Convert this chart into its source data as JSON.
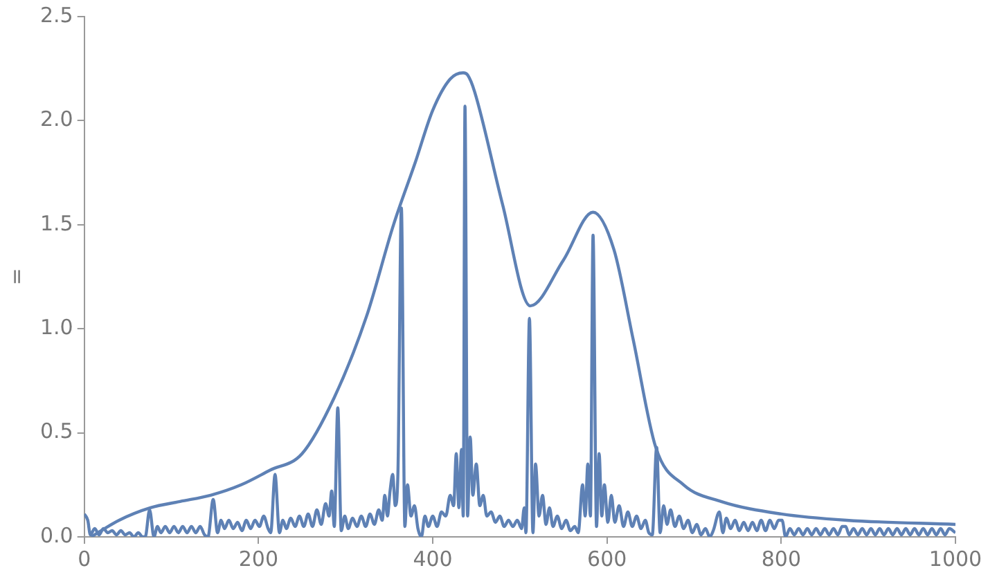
{
  "chart_data": {
    "type": "line",
    "ylabel": "=",
    "xlim": [
      0,
      1000
    ],
    "ylim": [
      0,
      2.5
    ],
    "xticks": [
      0,
      200,
      400,
      600,
      800,
      1000
    ],
    "yticks": [
      {
        "value": 0,
        "label": "0.0"
      },
      {
        "value": 0.5,
        "label": "0.5"
      },
      {
        "value": 1,
        "label": "1.0"
      },
      {
        "value": 1.5,
        "label": "1.5"
      },
      {
        "value": 2,
        "label": "2.0"
      },
      {
        "value": 2.5,
        "label": "2.5"
      }
    ],
    "series": [
      {
        "color": "#5e81b5",
        "x": [
          8,
          40,
          76,
          110,
          145,
          180,
          213,
          250,
          287,
          324,
          355,
          380,
          400,
          420,
          435,
          440,
          448,
          480,
          512,
          550,
          584,
          608,
          630,
          656,
          688,
          731,
          800,
          875,
          1000
        ],
        "values": [
          0,
          0.08,
          0.14,
          0.17,
          0.2,
          0.25,
          0.32,
          0.4,
          0.67,
          1.06,
          1.5,
          1.8,
          2.05,
          2.2,
          2.23,
          2.22,
          2.14,
          1.6,
          1.11,
          1.33,
          1.56,
          1.38,
          0.95,
          0.43,
          0.25,
          0.17,
          0.11,
          0.08,
          0.06
        ]
      },
      {
        "color": "#5e81b5",
        "x": [
          0,
          4,
          7,
          12,
          17,
          22,
          27,
          32,
          37,
          42,
          47,
          52,
          57,
          62,
          67,
          70,
          75,
          80,
          84,
          88,
          93,
          98,
          103,
          108,
          113,
          118,
          123,
          128,
          133,
          138,
          142,
          148,
          153,
          157,
          161,
          166,
          171,
          176,
          181,
          186,
          191,
          196,
          201,
          206,
          211,
          214,
          219,
          224,
          228,
          232,
          237,
          242,
          247,
          252,
          257,
          262,
          267,
          272,
          277,
          281,
          284,
          287,
          291,
          295,
          299,
          303,
          308,
          313,
          318,
          323,
          328,
          333,
          338,
          342,
          345,
          348,
          351,
          354,
          357,
          360,
          364,
          368,
          371,
          375,
          379,
          383,
          387,
          391,
          395,
          400,
          405,
          410,
          415,
          420,
          424,
          427,
          430,
          433,
          435,
          437,
          440,
          443,
          446,
          450,
          454,
          458,
          462,
          467,
          472,
          477,
          482,
          487,
          492,
          497,
          502,
          505,
          507,
          511,
          515,
          518,
          522,
          526,
          530,
          534,
          538,
          543,
          548,
          553,
          558,
          563,
          567,
          572,
          575,
          578,
          581,
          584,
          588,
          591,
          594,
          597,
          601,
          605,
          609,
          614,
          619,
          624,
          629,
          634,
          639,
          644,
          648,
          652,
          657,
          661,
          665,
          669,
          673,
          678,
          683,
          688,
          693,
          698,
          703,
          708,
          713,
          718,
          722,
          729,
          733,
          737,
          742,
          747,
          752,
          757,
          762,
          767,
          772,
          777,
          782,
          787,
          792,
          797,
          801,
          805,
          810,
          815,
          820,
          825,
          830,
          835,
          840,
          845,
          850,
          855,
          860,
          865,
          870,
          874,
          878,
          883,
          888,
          893,
          898,
          903,
          908,
          913,
          918,
          923,
          928,
          933,
          938,
          943,
          948,
          953,
          958,
          963,
          968,
          973,
          978,
          983,
          988,
          993,
          1000
        ],
        "values": [
          0.11,
          0.08,
          0.01,
          0.04,
          0.01,
          0.04,
          0.02,
          0.03,
          0.01,
          0.03,
          0.01,
          0.02,
          0,
          0.02,
          0,
          0,
          0.13,
          0,
          0.05,
          0.02,
          0.05,
          0.02,
          0.05,
          0.02,
          0.05,
          0.02,
          0.05,
          0.02,
          0.05,
          0.01,
          0,
          0.18,
          0.02,
          0.08,
          0.04,
          0.08,
          0.04,
          0.07,
          0.03,
          0.08,
          0.04,
          0.08,
          0.05,
          0.1,
          0.04,
          0.02,
          0.3,
          0.02,
          0.08,
          0.04,
          0.09,
          0.05,
          0.1,
          0.05,
          0.11,
          0.05,
          0.13,
          0.06,
          0.16,
          0.1,
          0.22,
          0.05,
          0.62,
          0.03,
          0.1,
          0.04,
          0.09,
          0.05,
          0.1,
          0.05,
          0.11,
          0.06,
          0.13,
          0.08,
          0.2,
          0.1,
          0.22,
          0.3,
          0.15,
          0.3,
          1.58,
          0.05,
          0.25,
          0.1,
          0.15,
          0.04,
          0,
          0.1,
          0.05,
          0.1,
          0.05,
          0.12,
          0.1,
          0.2,
          0.15,
          0.4,
          0.14,
          0.42,
          0.1,
          2.07,
          0.1,
          0.48,
          0.2,
          0.35,
          0.15,
          0.2,
          0.1,
          0.12,
          0.07,
          0.1,
          0.05,
          0.08,
          0.05,
          0.08,
          0.04,
          0.14,
          0.02,
          1.05,
          0.02,
          0.35,
          0.1,
          0.2,
          0.06,
          0.14,
          0.05,
          0.1,
          0.04,
          0.08,
          0.03,
          0.05,
          0.02,
          0.25,
          0.1,
          0.35,
          0.1,
          1.45,
          0.05,
          0.4,
          0.1,
          0.25,
          0.07,
          0.2,
          0.07,
          0.15,
          0.05,
          0.12,
          0.05,
          0.1,
          0.04,
          0.08,
          0.02,
          0.01,
          0.43,
          0.02,
          0.15,
          0.06,
          0.13,
          0.05,
          0.1,
          0.04,
          0.08,
          0.02,
          0.06,
          0.01,
          0.04,
          0,
          0.03,
          0.12,
          0.02,
          0.09,
          0.04,
          0.08,
          0.03,
          0.07,
          0.03,
          0.07,
          0.03,
          0.08,
          0.03,
          0.08,
          0.04,
          0.08,
          0.08,
          0,
          0.04,
          0.01,
          0.04,
          0.01,
          0.04,
          0.01,
          0.04,
          0.01,
          0.04,
          0.01,
          0.04,
          0.01,
          0.05,
          0.05,
          0.01,
          0.04,
          0.01,
          0.04,
          0.01,
          0.04,
          0.01,
          0.04,
          0.01,
          0.04,
          0.01,
          0.04,
          0.01,
          0.04,
          0.01,
          0.04,
          0.01,
          0.04,
          0.01,
          0.04,
          0.01,
          0.04,
          0.01,
          0.04,
          0.02
        ]
      }
    ]
  }
}
